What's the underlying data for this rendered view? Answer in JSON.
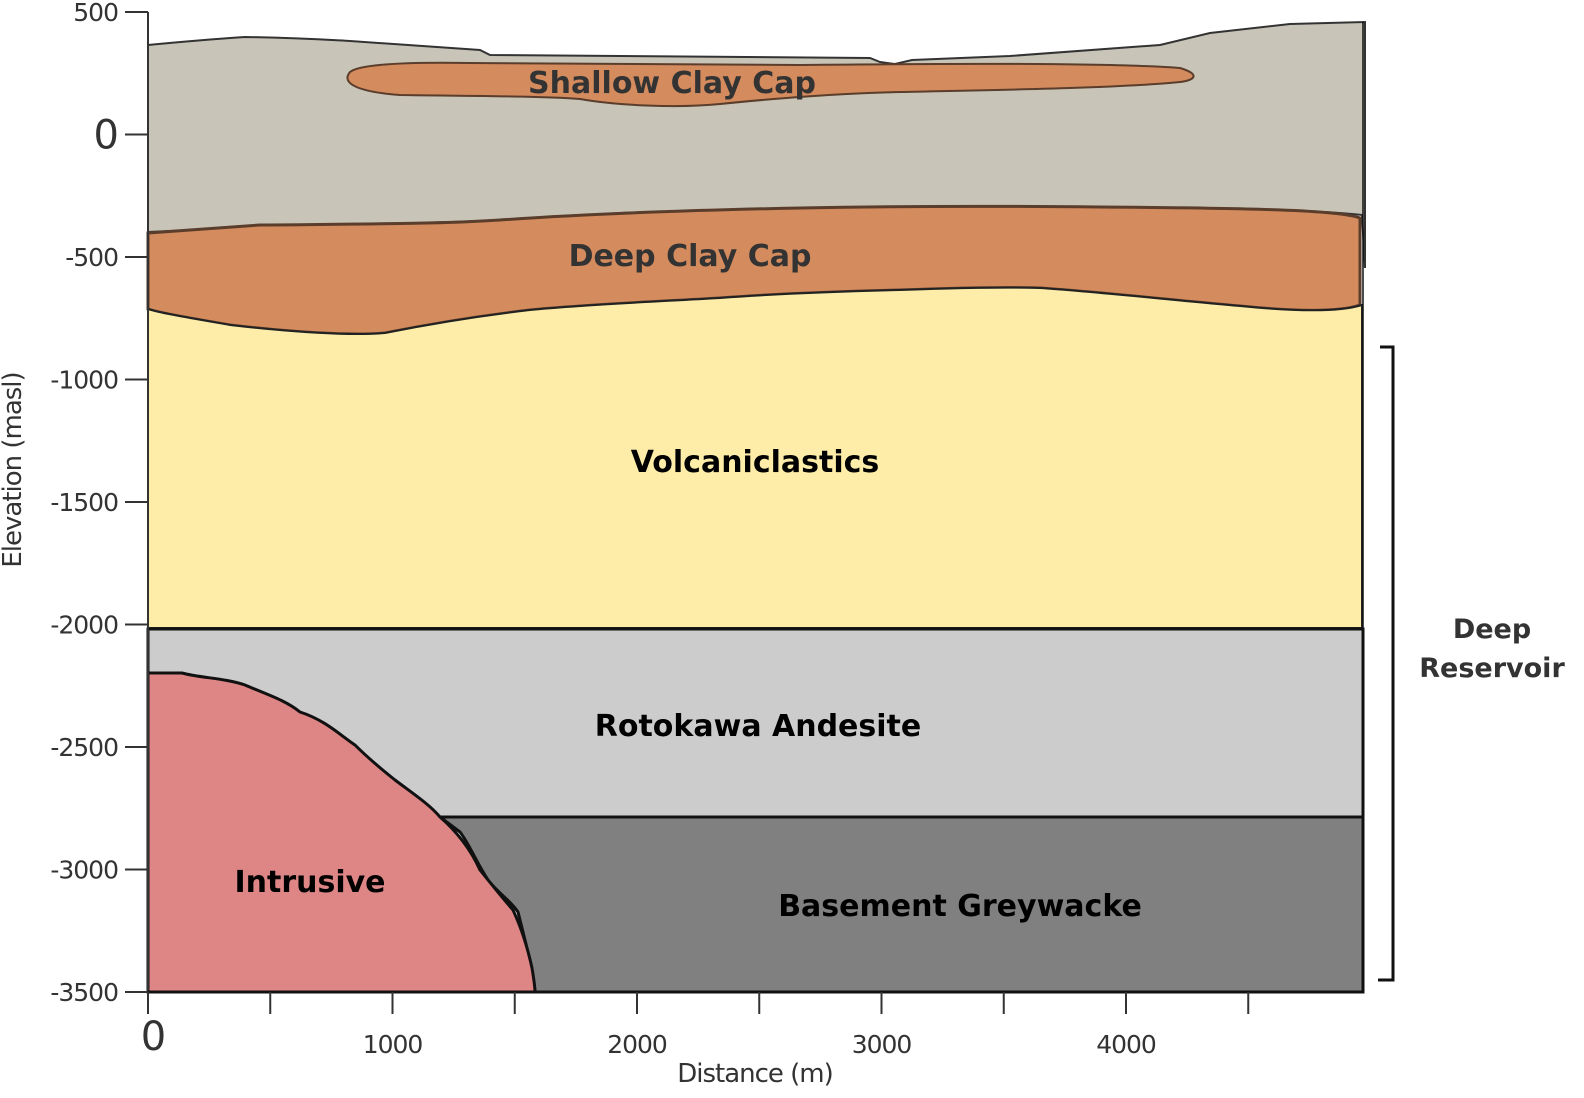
{
  "chart_data": {
    "type": "cross-section",
    "x_axis": {
      "label": "Distance (m)",
      "range": [
        0,
        5000
      ],
      "ticks": [
        0,
        500,
        1000,
        1500,
        2000,
        2500,
        3000,
        3500,
        4000,
        4500
      ],
      "tick_labels": [
        "0",
        "1000",
        "2000",
        "3000",
        "4000"
      ]
    },
    "y_axis": {
      "label": "Elevation (masl)",
      "range": [
        -3500,
        500
      ],
      "ticks": [
        500,
        0,
        -500,
        -1000,
        -1500,
        -2000,
        -2500,
        -3000,
        -3500
      ],
      "tick_labels": [
        "500",
        "0",
        "-500",
        "-1000",
        "-1500",
        "-2000",
        "-2500",
        "-3000",
        "-3500"
      ]
    },
    "units": [
      {
        "name": "Shallow Clay Cap",
        "color": "#d48b5e"
      },
      {
        "name": "Deep Clay Cap",
        "color": "#d48b5e"
      },
      {
        "name": "Volcaniclastics",
        "color": "#fdeda9",
        "top_elev": -700,
        "bottom_elev": -2000
      },
      {
        "name": "Rotokawa Andesite",
        "color": "#cccccc",
        "top_elev": -2000,
        "bottom_elev": -2770
      },
      {
        "name": "Basement Greywacke",
        "color": "#808080",
        "top_elev": -2770,
        "bottom_elev": -3500
      },
      {
        "name": "Intrusive",
        "color": "#de8686",
        "top_elev": -2200,
        "bottom_elev": -3500
      }
    ],
    "surface_color": "#c8c5b8",
    "bracket": {
      "label_line1": "Deep",
      "label_line2": "Reservoir",
      "top_elev": -870,
      "bottom_elev": -3470
    }
  }
}
